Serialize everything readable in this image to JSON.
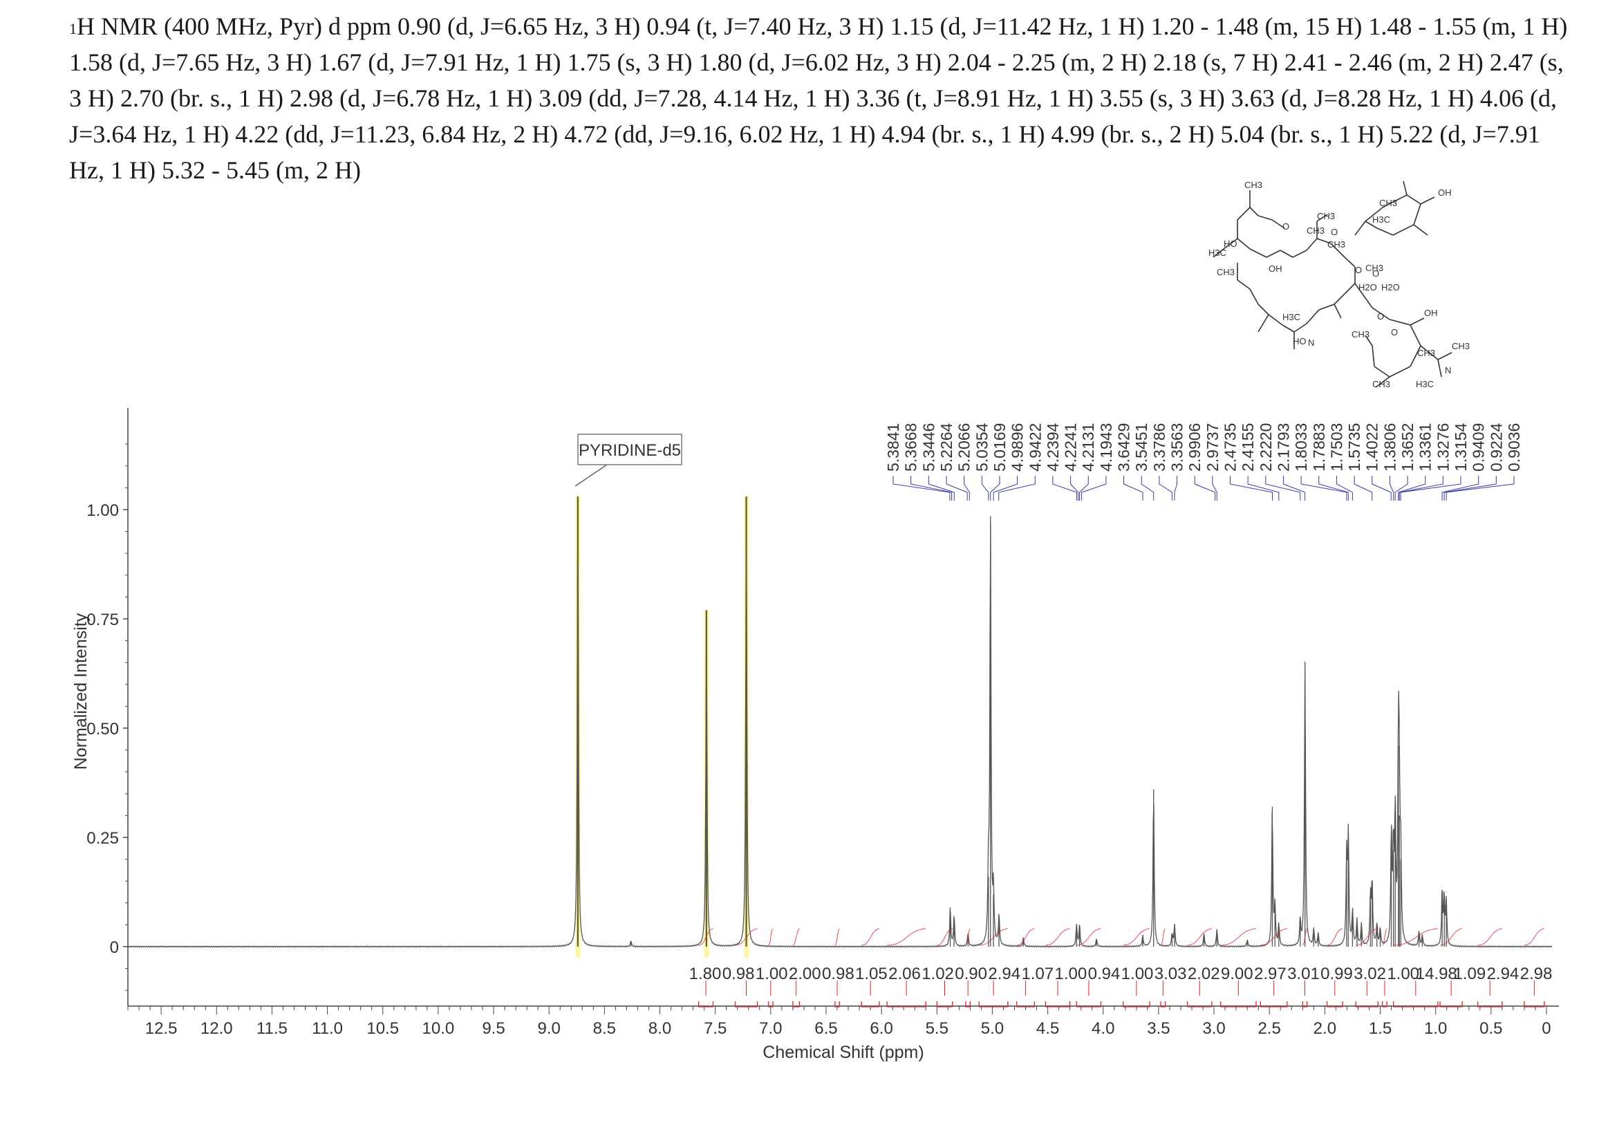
{
  "header": {
    "nucleus_sup": "1",
    "text": "H NMR (400 MHz, Pyr) d ppm 0.90 (d, J=6.65 Hz, 3 H) 0.94 (t, J=7.40 Hz, 3 H) 1.15 (d, J=11.42 Hz, 1 H) 1.20 - 1.48 (m, 15 H) 1.48 - 1.55 (m, 1 H) 1.58 (d, J=7.65 Hz, 3 H) 1.67 (d, J=7.91 Hz, 1 H) 1.75 (s, 3 H) 1.80 (d, J=6.02 Hz, 3 H) 2.04 - 2.25 (m, 2 H) 2.18 (s, 7 H) 2.41 - 2.46 (m, 2 H) 2.47 (s, 3 H) 2.70 (br. s., 1 H) 2.98 (d, J=6.78 Hz, 1 H) 3.09 (dd, J=7.28, 4.14 Hz, 1 H) 3.36 (t, J=8.91 Hz, 1 H) 3.55 (s, 3 H) 3.63 (d, J=8.28 Hz, 1 H) 4.06 (d, J=3.64 Hz, 1 H) 4.22 (dd, J=11.23, 6.84 Hz, 2 H) 4.72 (dd, J=9.16, 6.02 Hz, 1 H) 4.94 (br. s., 1 H) 4.99 (br. s., 2 H) 5.04 (br. s., 1 H) 5.22 (d, J=7.91 Hz, 1 H) 5.32 - 5.45 (m, 2 H)"
  },
  "structure": {
    "labels": [
      "CH3",
      "H3C",
      "O",
      "CH3",
      "OH",
      "HO",
      "CH3",
      "O",
      "CH3",
      "O",
      "O",
      "CH3",
      "OH",
      "H3C",
      "N",
      "CH3",
      "H3C",
      "O",
      "H2O",
      "H2O",
      "CH3",
      "HO",
      "CH3",
      "OH",
      "O",
      "CH3",
      "N",
      "CH3",
      "H3C",
      "CH3"
    ]
  },
  "chart_data": {
    "type": "line",
    "xlabel": "Chemical Shift (ppm)",
    "ylabel": "Normalized Intensity",
    "xlim": [
      12.8,
      -0.05
    ],
    "ylim": [
      -0.12,
      1.22
    ],
    "x_ticks": [
      "12.5",
      "12.0",
      "11.5",
      "11.0",
      "10.5",
      "10.0",
      "9.5",
      "9.0",
      "8.5",
      "8.0",
      "7.5",
      "7.0",
      "6.5",
      "6.0",
      "5.5",
      "5.0",
      "4.5",
      "4.0",
      "3.5",
      "3.0",
      "2.5",
      "2.0",
      "1.5",
      "1.0",
      "0.5",
      "0"
    ],
    "x_tick_values": [
      12.5,
      12.0,
      11.5,
      11.0,
      10.5,
      10.0,
      9.5,
      9.0,
      8.5,
      8.0,
      7.5,
      7.0,
      6.5,
      6.0,
      5.5,
      5.0,
      4.5,
      4.0,
      3.5,
      3.0,
      2.5,
      2.0,
      1.5,
      1.0,
      0.5,
      0
    ],
    "y_ticks": [
      "0",
      "0.25",
      "0.50",
      "0.75",
      "1.00"
    ],
    "y_tick_values": [
      0,
      0.25,
      0.5,
      0.75,
      1.0
    ],
    "solvent_label": "PYRIDINE-d5",
    "solvent_peaks": [
      {
        "ppm": 8.74,
        "height": 1.03
      },
      {
        "ppm": 7.58,
        "height": 0.77
      },
      {
        "ppm": 7.22,
        "height": 1.03
      }
    ],
    "peaks": [
      {
        "ppm": 8.26,
        "height": 0.013
      },
      {
        "ppm": 5.38,
        "height": 0.09
      },
      {
        "ppm": 5.345,
        "height": 0.07
      },
      {
        "ppm": 5.22,
        "height": 0.03
      },
      {
        "ppm": 5.035,
        "height": 0.16
      },
      {
        "ppm": 5.017,
        "height": 0.985
      },
      {
        "ppm": 4.99,
        "height": 0.12
      },
      {
        "ppm": 4.94,
        "height": 0.07
      },
      {
        "ppm": 4.72,
        "height": 0.02
      },
      {
        "ppm": 4.24,
        "height": 0.05
      },
      {
        "ppm": 4.213,
        "height": 0.05
      },
      {
        "ppm": 4.06,
        "height": 0.018
      },
      {
        "ppm": 3.643,
        "height": 0.025
      },
      {
        "ppm": 3.545,
        "height": 0.36
      },
      {
        "ppm": 3.378,
        "height": 0.03
      },
      {
        "ppm": 3.356,
        "height": 0.05
      },
      {
        "ppm": 3.09,
        "height": 0.03
      },
      {
        "ppm": 2.974,
        "height": 0.04
      },
      {
        "ppm": 2.7,
        "height": 0.015
      },
      {
        "ppm": 2.474,
        "height": 0.32
      },
      {
        "ppm": 2.45,
        "height": 0.09
      },
      {
        "ppm": 2.415,
        "height": 0.05
      },
      {
        "ppm": 2.222,
        "height": 0.06
      },
      {
        "ppm": 2.179,
        "height": 0.65
      },
      {
        "ppm": 2.1,
        "height": 0.04
      },
      {
        "ppm": 2.06,
        "height": 0.03
      },
      {
        "ppm": 1.803,
        "height": 0.21
      },
      {
        "ppm": 1.788,
        "height": 0.25
      },
      {
        "ppm": 1.75,
        "height": 0.08
      },
      {
        "ppm": 1.71,
        "height": 0.06
      },
      {
        "ppm": 1.67,
        "height": 0.05
      },
      {
        "ppm": 1.588,
        "height": 0.12
      },
      {
        "ppm": 1.573,
        "height": 0.15
      },
      {
        "ppm": 1.53,
        "height": 0.05
      },
      {
        "ppm": 1.5,
        "height": 0.04
      },
      {
        "ppm": 1.4,
        "height": 0.26
      },
      {
        "ppm": 1.381,
        "height": 0.22
      },
      {
        "ppm": 1.365,
        "height": 0.3
      },
      {
        "ppm": 1.336,
        "height": 0.46
      },
      {
        "ppm": 1.3276,
        "height": 0.3
      },
      {
        "ppm": 1.315,
        "height": 0.2
      },
      {
        "ppm": 1.15,
        "height": 0.035
      },
      {
        "ppm": 1.12,
        "height": 0.025
      },
      {
        "ppm": 0.941,
        "height": 0.13
      },
      {
        "ppm": 0.922,
        "height": 0.11
      },
      {
        "ppm": 0.904,
        "height": 0.1
      }
    ],
    "peak_labels": [
      "5.3841",
      "5.3668",
      "5.3446",
      "5.2264",
      "5.2066",
      "5.0354",
      "5.0169",
      "4.9896",
      "4.9422",
      "4.2394",
      "4.2241",
      "4.2131",
      "4.1943",
      "3.6429",
      "3.5451",
      "3.3786",
      "3.3563",
      "2.9906",
      "2.9737",
      "2.4735",
      "2.4155",
      "2.2220",
      "2.1793",
      "1.8033",
      "1.7883",
      "1.7503",
      "1.5735",
      "1.4022",
      "1.3806",
      "1.3652",
      "1.3361",
      "1.3276",
      "1.3154",
      "0.9409",
      "0.9224",
      "0.9036"
    ],
    "peak_label_ppm": [
      5.3841,
      5.3668,
      5.3446,
      5.2264,
      5.2066,
      5.0354,
      5.0169,
      4.9896,
      4.9422,
      4.2394,
      4.2241,
      4.2131,
      4.1943,
      3.6429,
      3.5451,
      3.3786,
      3.3563,
      2.9906,
      2.9737,
      2.4735,
      2.4155,
      2.222,
      2.1793,
      1.8033,
      1.7883,
      1.7503,
      1.5735,
      1.4022,
      1.3806,
      1.3652,
      1.3361,
      1.3276,
      1.3154,
      0.9409,
      0.9224,
      0.9036
    ],
    "integrals": [
      {
        "label": "1.80",
        "from": 7.65,
        "to": 7.52
      },
      {
        "label": "0.98",
        "from": 7.32,
        "to": 7.12
      },
      {
        "label": "1.00",
        "from": 7.02,
        "to": 6.98
      },
      {
        "label": "2.00",
        "from": 6.8,
        "to": 6.74
      },
      {
        "label": "0.98",
        "from": 6.42,
        "to": 6.38
      },
      {
        "label": "1.05",
        "from": 6.18,
        "to": 6.02
      },
      {
        "label": "2.06",
        "from": 5.95,
        "to": 5.6
      },
      {
        "label": "1.02",
        "from": 5.5,
        "to": 5.36
      },
      {
        "label": "0.90",
        "from": 5.24,
        "to": 5.2
      },
      {
        "label": "2.94",
        "from": 5.12,
        "to": 4.86
      },
      {
        "label": "1.07",
        "from": 4.78,
        "to": 4.62
      },
      {
        "label": "1.00",
        "from": 4.52,
        "to": 4.3
      },
      {
        "label": "0.94",
        "from": 4.24,
        "to": 4.02
      },
      {
        "label": "1.00",
        "from": 3.82,
        "to": 3.58
      },
      {
        "label": "3.03",
        "from": 3.48,
        "to": 3.44
      },
      {
        "label": "2.02",
        "from": 3.24,
        "to": 3.02
      },
      {
        "label": "9.00",
        "from": 2.94,
        "to": 2.62
      },
      {
        "label": "2.97",
        "from": 2.58,
        "to": 2.34
      },
      {
        "label": "3.01",
        "from": 2.2,
        "to": 2.16
      },
      {
        "label": "0.99",
        "from": 1.98,
        "to": 1.84
      },
      {
        "label": "3.02",
        "from": 1.72,
        "to": 1.52
      },
      {
        "label": "1.00",
        "from": 1.48,
        "to": 1.44
      },
      {
        "label": "14.98",
        "from": 1.38,
        "to": 0.98
      },
      {
        "label": "1.09",
        "from": 0.96,
        "to": 0.76
      },
      {
        "label": "2.94",
        "from": 0.62,
        "to": 0.4
      },
      {
        "label": "2.98",
        "from": 0.2,
        "to": 0.02
      }
    ],
    "colors": {
      "spectrum": "#555555",
      "peak_label": "#3a3aa8",
      "integral": "#e8202a",
      "solvent_highlight": "#fff59a",
      "solvent_line": "#5a6a1a",
      "axis": "#444444"
    }
  }
}
